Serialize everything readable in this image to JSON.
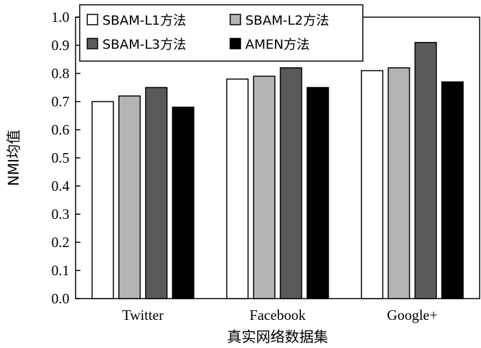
{
  "chart_data": {
    "type": "bar",
    "title": "",
    "xlabel": "真实网络数据集",
    "ylabel": "NMI均值",
    "ylim": [
      0.0,
      1.0
    ],
    "yticks": [
      "0.0",
      "0.1",
      "0.2",
      "0.3",
      "0.4",
      "0.5",
      "0.6",
      "0.7",
      "0.8",
      "0.9",
      "1.0"
    ],
    "categories": [
      "Twitter",
      "Facebook",
      "Google+"
    ],
    "legend_position": "top-left",
    "grid": false,
    "series": [
      {
        "name": "SBAM-L1方法",
        "color": "#ffffff",
        "values": [
          0.7,
          0.78,
          0.81
        ]
      },
      {
        "name": "SBAM-L2方法",
        "color": "#b4b4b4",
        "values": [
          0.72,
          0.79,
          0.82
        ]
      },
      {
        "name": "SBAM-L3方法",
        "color": "#5a5a5a",
        "values": [
          0.75,
          0.82,
          0.91
        ]
      },
      {
        "name": "AMEN方法",
        "color": "#000000",
        "values": [
          0.68,
          0.75,
          0.77
        ]
      }
    ]
  }
}
